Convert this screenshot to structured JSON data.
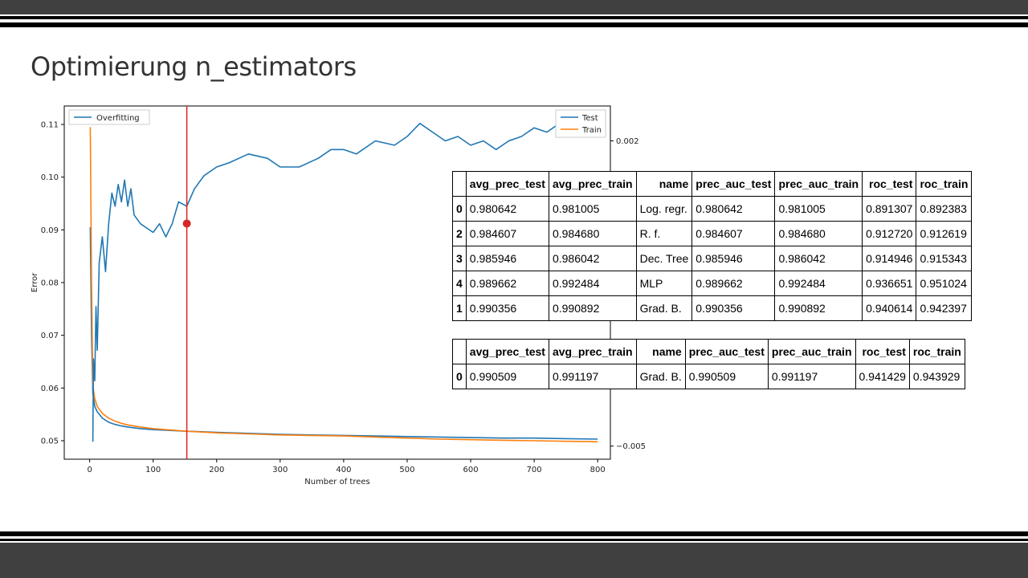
{
  "slide": {
    "title": "Optimierung n_estimators"
  },
  "chart_data": {
    "type": "line",
    "xlabel": "Number of trees",
    "ylabel": "Error",
    "xlim": [
      -40,
      820
    ],
    "ylim": [
      0.0465,
      0.1135
    ],
    "y2lim": [
      -0.0053,
      0.0028
    ],
    "xticks": [
      0,
      100,
      200,
      300,
      400,
      500,
      600,
      700,
      800
    ],
    "yticks": [
      0.05,
      0.06,
      0.07,
      0.08,
      0.09,
      0.1,
      0.11
    ],
    "y2ticks": [
      0.002,
      -0.005
    ],
    "legend_left": "Overfitting",
    "legend_right": [
      "Test",
      "Train"
    ],
    "vline_x": 153,
    "marker": {
      "x": 153,
      "y": 0.0912
    },
    "series": [
      {
        "name": "Test",
        "axis": "left",
        "color": "#1f77b4",
        "x": [
          1,
          3,
          5,
          8,
          12,
          20,
          30,
          40,
          50,
          60,
          80,
          100,
          120,
          153,
          200,
          250,
          300,
          350,
          400,
          450,
          500,
          550,
          600,
          650,
          700,
          750,
          800
        ],
        "y": [
          0.0905,
          0.07,
          0.059,
          0.0565,
          0.0555,
          0.0543,
          0.0535,
          0.0531,
          0.0528,
          0.0526,
          0.0523,
          0.0521,
          0.052,
          0.0518,
          0.0516,
          0.0514,
          0.0512,
          0.0511,
          0.051,
          0.0509,
          0.0508,
          0.0507,
          0.0506,
          0.0505,
          0.0505,
          0.0504,
          0.0503
        ]
      },
      {
        "name": "Train",
        "axis": "left",
        "color": "#ff7f0e",
        "x": [
          1,
          3,
          5,
          8,
          12,
          20,
          30,
          40,
          50,
          60,
          80,
          100,
          120,
          153,
          200,
          250,
          300,
          350,
          400,
          450,
          500,
          550,
          600,
          650,
          700,
          750,
          800
        ],
        "y": [
          0.1095,
          0.08,
          0.0605,
          0.058,
          0.0565,
          0.0552,
          0.0543,
          0.0537,
          0.0533,
          0.053,
          0.0526,
          0.0523,
          0.0521,
          0.0518,
          0.0515,
          0.0513,
          0.0511,
          0.051,
          0.0509,
          0.0507,
          0.0505,
          0.0503,
          0.0502,
          0.0501,
          0.05,
          0.0499,
          0.0498
        ]
      },
      {
        "name": "Overfitting",
        "axis": "right",
        "color": "#1f77b4",
        "x": [
          5,
          6,
          8,
          10,
          12,
          15,
          20,
          25,
          30,
          35,
          40,
          45,
          50,
          55,
          60,
          65,
          70,
          80,
          90,
          100,
          110,
          120,
          130,
          140,
          153,
          165,
          180,
          200,
          220,
          250,
          280,
          300,
          330,
          360,
          380,
          400,
          420,
          450,
          480,
          500,
          520,
          540,
          560,
          580,
          600,
          620,
          640,
          660,
          680,
          700,
          720,
          740,
          760,
          780,
          800
        ],
        "y": [
          -0.0049,
          -0.003,
          -0.0035,
          -0.0018,
          -0.0028,
          -0.0008,
          -0.0002,
          -0.001,
          0.0001,
          0.0008,
          0.0005,
          0.001,
          0.0006,
          0.0011,
          0.0005,
          0.0009,
          0.0003,
          0.0001,
          0.0,
          -0.0001,
          0.0001,
          -0.0002,
          0.0001,
          0.0006,
          0.0005,
          0.0009,
          0.0012,
          0.0014,
          0.0015,
          0.0017,
          0.0016,
          0.0014,
          0.0014,
          0.0016,
          0.0018,
          0.0018,
          0.0017,
          0.002,
          0.0019,
          0.0021,
          0.0024,
          0.0022,
          0.002,
          0.0021,
          0.0019,
          0.002,
          0.0018,
          0.002,
          0.0021,
          0.0023,
          0.0022,
          0.0024,
          0.0023,
          0.0024,
          0.0023
        ]
      }
    ]
  },
  "tables": [
    {
      "columns": [
        "",
        "avg_prec_test",
        "avg_prec_train",
        "name",
        "prec_auc_test",
        "prec_auc_train",
        "roc_test",
        "roc_train"
      ],
      "rows": [
        [
          "0",
          "0.980642",
          "0.981005",
          "Log. regr.",
          "0.980642",
          "0.981005",
          "0.891307",
          "0.892383"
        ],
        [
          "2",
          "0.984607",
          "0.984680",
          "R. f.",
          "0.984607",
          "0.984680",
          "0.912720",
          "0.912619"
        ],
        [
          "3",
          "0.985946",
          "0.986042",
          "Dec. Tree",
          "0.985946",
          "0.986042",
          "0.914946",
          "0.915343"
        ],
        [
          "4",
          "0.989662",
          "0.992484",
          "MLP",
          "0.989662",
          "0.992484",
          "0.936651",
          "0.951024"
        ],
        [
          "1",
          "0.990356",
          "0.990892",
          "Grad. B.",
          "0.990356",
          "0.990892",
          "0.940614",
          "0.942397"
        ]
      ]
    },
    {
      "columns": [
        "",
        "avg_prec_test",
        "avg_prec_train",
        "name",
        "prec_auc_test",
        "prec_auc_train",
        "roc_test",
        "roc_train"
      ],
      "rows": [
        [
          "0",
          "0.990509",
          "0.991197",
          "Grad. B.",
          "0.990509",
          "0.991197",
          "0.941429",
          "0.943929"
        ]
      ]
    }
  ]
}
